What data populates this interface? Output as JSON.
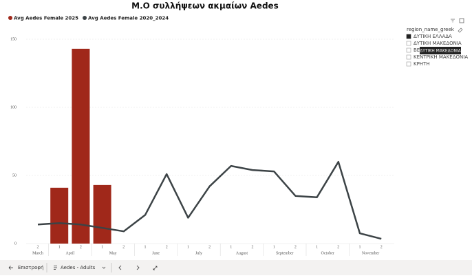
{
  "chart_data": {
    "type": "bar_line",
    "title": "Μ.Ο συλλήψεων ακμαίων Aedes",
    "categories": [
      [
        "March",
        "2"
      ],
      [
        "April",
        "1"
      ],
      [
        "April",
        "2"
      ],
      [
        "May",
        "1"
      ],
      [
        "May",
        "2"
      ],
      [
        "June",
        "1"
      ],
      [
        "June",
        "2"
      ],
      [
        "July",
        "1"
      ],
      [
        "July",
        "2"
      ],
      [
        "August",
        "1"
      ],
      [
        "August",
        "2"
      ],
      [
        "September",
        "1"
      ],
      [
        "September",
        "2"
      ],
      [
        "October",
        "1"
      ],
      [
        "October",
        "2"
      ],
      [
        "November",
        "1"
      ],
      [
        "November",
        "2"
      ]
    ],
    "series": [
      {
        "name": "Avg Aedes Female 2025",
        "color": "#a0281a",
        "kind": "bar",
        "values": [
          null,
          41,
          143,
          43,
          null,
          null,
          null,
          null,
          null,
          null,
          null,
          null,
          null,
          null,
          null,
          null,
          null
        ]
      },
      {
        "name": "Avg Aedes Female 2020_2024",
        "color": "#3c4346",
        "kind": "line",
        "values": [
          14,
          15,
          14,
          11.5,
          9,
          21,
          51,
          19,
          42,
          57,
          54,
          53,
          35,
          34,
          60,
          7.5,
          3.5
        ]
      }
    ],
    "ylim": [
      0,
      150
    ],
    "yticks": [
      0,
      50,
      100,
      150
    ],
    "grid": true
  },
  "slicer": {
    "header": "region_name_greek",
    "items": [
      {
        "label": "ΔΥΤΙΚΗ ΕΛΛΑΔΑ",
        "checked": true
      },
      {
        "label": "ΔΥΤΙΚΗ ΜΑΚΕΔΟΝΙΑ",
        "checked": false
      },
      {
        "label": "ΒΕ",
        "checked": false
      },
      {
        "label": "ΚΕΝΤΡΙΚΗ ΜΑΚΕΔΟΝΙΑ",
        "checked": false
      },
      {
        "label": "ΚΡΗΤΗ",
        "checked": false
      }
    ],
    "tooltip": "ΔΥΤΙΚΗ ΜΑΚΕΔΟΝΙΑ"
  },
  "footer": {
    "back": "Επιστροφή",
    "page": "Aedes - Adults"
  }
}
